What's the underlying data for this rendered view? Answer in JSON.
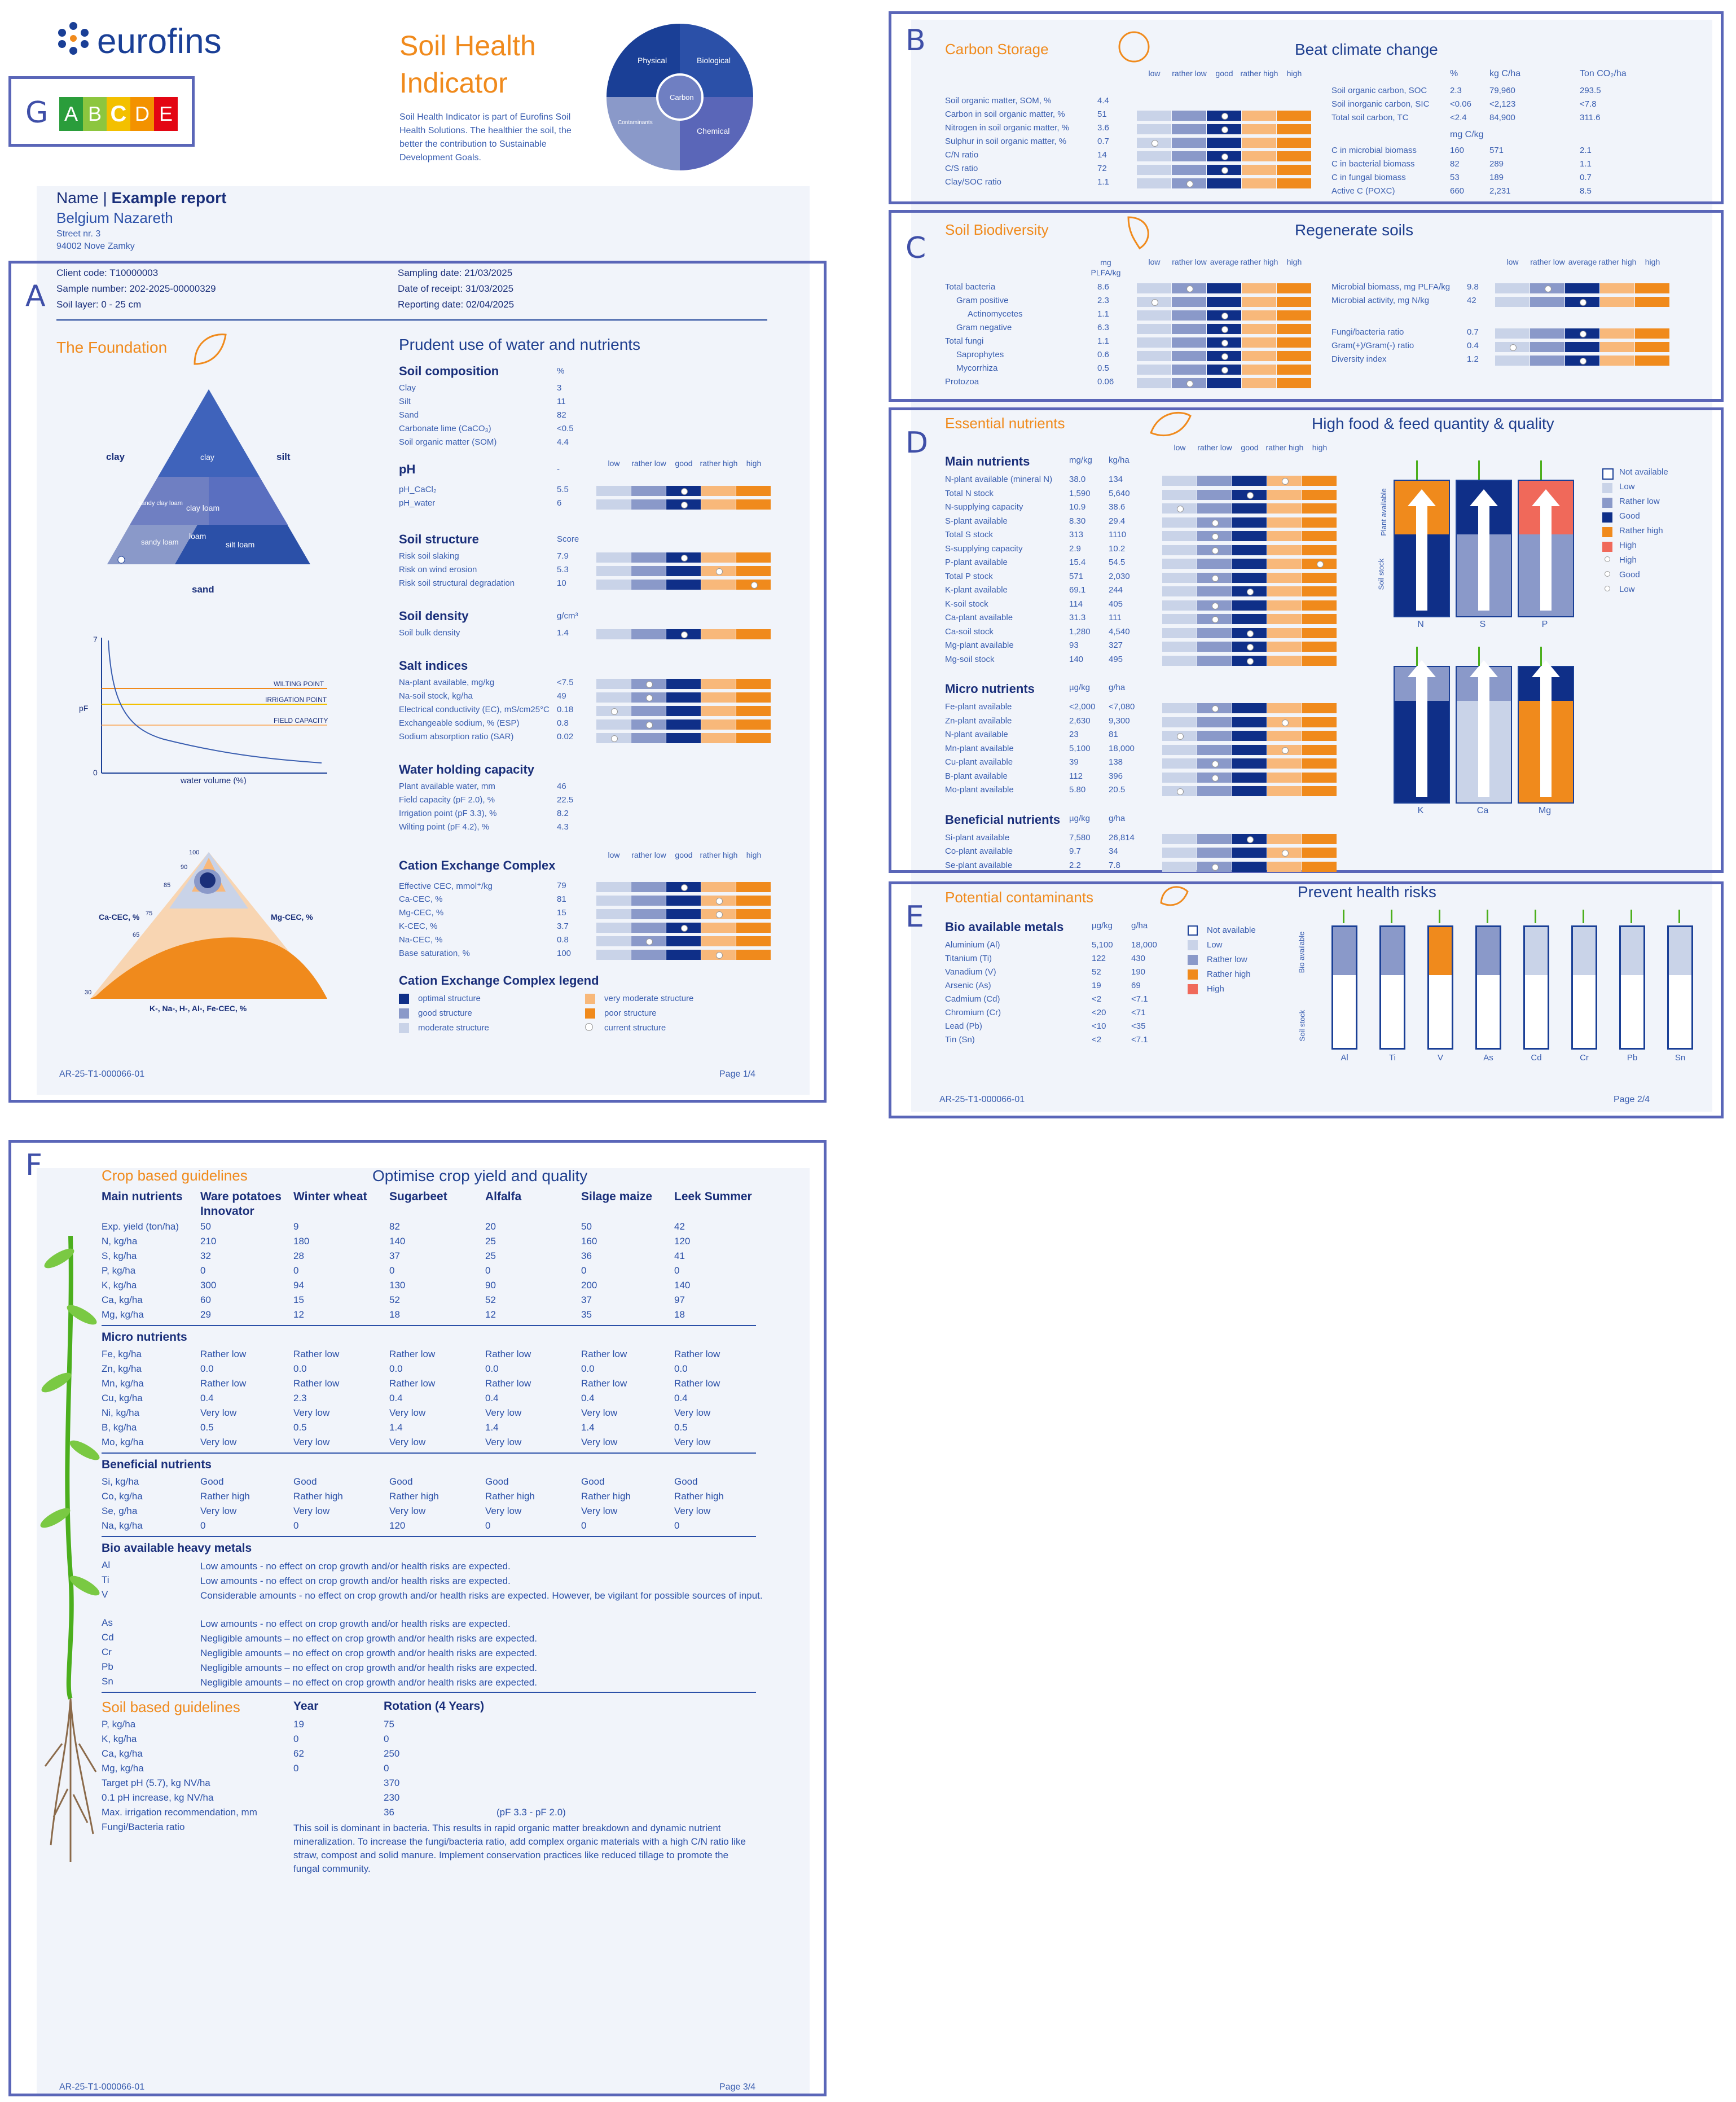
{
  "labels": {
    "A": "A",
    "B": "B",
    "C": "C",
    "D": "D",
    "E": "E",
    "F": "F",
    "G": "G"
  },
  "brand": "eurofins",
  "grade": [
    "A",
    "B",
    "C",
    "D",
    "E"
  ],
  "grade_colors": [
    "#2a9d3b",
    "#8cc63f",
    "#f3c000",
    "#f39200",
    "#e30613"
  ],
  "title": [
    "Soil Health",
    "Indicator"
  ],
  "intro": "Soil Health Indicator is part of Eurofins Soil Health Solutions. The healthier the soil, the better the contribution to Sustainable Development Goals.",
  "wheel": {
    "physical": "Physical",
    "biological": "Biological",
    "chemical": "Chemical",
    "carbon": "Carbon",
    "contaminants": "Contaminants"
  },
  "report": {
    "name_label": "Name",
    "name_value": "Example report",
    "location": "Belgium Nazareth",
    "street": "Street nr. 3",
    "city": "94002 Nove Zamky"
  },
  "meta": {
    "client_code": "Client code: T10000003",
    "sample_number": "Sample number: 202-2025-00000329",
    "soil_layer": "Soil layer: 0 - 25 cm",
    "sampling_date": "Sampling date: 21/03/2025",
    "receipt_date": "Date of receipt: 31/03/2025",
    "reporting_date": "Reporting date: 02/04/2025"
  },
  "scale5": [
    "low",
    "rather low",
    "good",
    "rather high",
    "high"
  ],
  "scale5b": [
    "low",
    "rather low",
    "average",
    "rather high",
    "high"
  ],
  "pageA": {
    "section": "The Foundation",
    "heading": "Prudent use of water and nutrients",
    "composition": {
      "title": "Soil composition",
      "unit": "%",
      "rows": [
        [
          "Clay",
          "3"
        ],
        [
          "Silt",
          "11"
        ],
        [
          "Sand",
          "82"
        ],
        [
          "Carbonate lime (CaCO₃)",
          "<0.5"
        ],
        [
          "Soil organic matter (SOM)",
          "4.4"
        ]
      ]
    },
    "ph": {
      "title": "pH",
      "unit": "-",
      "rows": [
        [
          "pH_CaCl₂",
          "5.5"
        ],
        [
          "pH_water",
          "6"
        ]
      ],
      "levels": [
        2,
        2
      ]
    },
    "structure": {
      "title": "Soil structure",
      "unit": "Score",
      "rows": [
        [
          "Risk soil slaking",
          "7.9"
        ],
        [
          "Risk on wind erosion",
          "5.3"
        ],
        [
          "Risk soil structural degradation",
          "10"
        ]
      ],
      "levels": [
        2,
        3,
        4
      ]
    },
    "density": {
      "title": "Soil density",
      "unit": "g/cm³",
      "rows": [
        [
          "Soil bulk density",
          "1.4"
        ]
      ],
      "levels": [
        2
      ]
    },
    "salt": {
      "title": "Salt indices",
      "rows": [
        [
          "Na-plant available, mg/kg",
          "<7.5"
        ],
        [
          "Na-soil stock, kg/ha",
          "49"
        ],
        [
          "Electrical conductivity (EC), mS/cm25°C",
          "0.18"
        ],
        [
          "Exchangeable sodium, % (ESP)",
          "0.8"
        ],
        [
          "Sodium absorption ratio (SAR)",
          "0.02"
        ]
      ],
      "levels": [
        1,
        1,
        0,
        1,
        0
      ]
    },
    "water": {
      "title": "Water holding capacity",
      "rows": [
        [
          "Plant available water, mm",
          "46"
        ],
        [
          "Field capacity (pF 2.0), %",
          "22.5"
        ],
        [
          "Irrigation point (pF 3.3), %",
          "8.2"
        ],
        [
          "Wilting point (pF 4.2), %",
          "4.3"
        ]
      ]
    },
    "cec": {
      "title": "Cation Exchange Complex",
      "rows": [
        [
          "Effective CEC, mmol⁺/kg",
          "79"
        ],
        [
          "Ca-CEC, %",
          "81"
        ],
        [
          "Mg-CEC, %",
          "15"
        ],
        [
          "K-CEC, %",
          "3.7"
        ],
        [
          "Na-CEC, %",
          "0.8"
        ],
        [
          "Base saturation, %",
          "100"
        ]
      ],
      "levels": [
        2,
        3,
        3,
        2,
        1,
        3
      ]
    },
    "cec_legend": {
      "title": "Cation Exchange Complex legend",
      "items": [
        "optimal structure",
        "good structure",
        "moderate structure",
        "very moderate structure",
        "poor structure",
        "current structure"
      ]
    },
    "texture": {
      "clay": "clay",
      "silt": "silt",
      "sand": "sand",
      "pct": "(%)",
      "zones": [
        "clay",
        "clay loam",
        "silt loam",
        "loam",
        "sandy loam",
        "sandy clay loam"
      ]
    },
    "pf": {
      "y": "pF",
      "x": "water volume (%)",
      "y_max": "7",
      "y_min": "0",
      "lines": [
        "WILTING POINT",
        "IRRIGATION POINT",
        "FIELD CAPACITY"
      ]
    },
    "cec_tri": {
      "ca": "Ca-CEC, %",
      "mg": "Mg-CEC, %",
      "k": "K-, Na-, H-, Al-, Fe-CEC, %",
      "ticks": [
        "100",
        "90",
        "85",
        "75",
        "65",
        "30"
      ]
    },
    "footer_left": "AR-25-T1-000066-01",
    "footer_right": "Page 1/4"
  },
  "pageB": {
    "section": "Carbon Storage",
    "heading": "Beat climate change",
    "rows": [
      [
        "Soil organic matter, SOM, %",
        "4.4"
      ],
      [
        "Carbon in soil organic matter, %",
        "51"
      ],
      [
        "Nitrogen in soil organic matter, %",
        "3.6"
      ],
      [
        "Sulphur in soil organic matter, %",
        "0.7"
      ],
      [
        "C/N ratio",
        "14"
      ],
      [
        "C/S ratio",
        "72"
      ],
      [
        "Clay/SOC ratio",
        "1.1"
      ]
    ],
    "levels": [
      null,
      2,
      2,
      0,
      2,
      2,
      1
    ],
    "right_head": [
      "%",
      "kg C/ha",
      "Ton CO₂/ha"
    ],
    "right_rows": [
      [
        "Soil organic carbon, SOC",
        "2.3",
        "79,960",
        "293.5"
      ],
      [
        "Soil inorganic carbon, SIC",
        "<0.06",
        "<2,123",
        "<7.8"
      ],
      [
        "Total soil carbon, TC",
        "<2.4",
        "84,900",
        "311.6"
      ]
    ],
    "right_head2": "mg C/kg",
    "right_rows2": [
      [
        "C in microbial biomass",
        "160",
        "571",
        "2.1"
      ],
      [
        "C in bacterial biomass",
        "82",
        "289",
        "1.1"
      ],
      [
        "C in fungal biomass",
        "53",
        "189",
        "0.7"
      ],
      [
        "Active C (POXC)",
        "660",
        "2,231",
        "8.5"
      ]
    ]
  },
  "pageC": {
    "section": "Soil Biodiversity",
    "heading": "Regenerate soils",
    "unit": "mg PLFA/kg",
    "rows": [
      [
        "Total bacteria",
        "8.6"
      ],
      [
        "Gram positive",
        "2.3"
      ],
      [
        "Actinomycetes",
        "1.1"
      ],
      [
        "Gram negative",
        "6.3"
      ],
      [
        "Total fungi",
        "1.1"
      ],
      [
        "Saprophytes",
        "0.6"
      ],
      [
        "Mycorrhiza",
        "0.5"
      ],
      [
        "Protozoa",
        "0.06"
      ]
    ],
    "levels": [
      1,
      0,
      2,
      2,
      2,
      2,
      2,
      1
    ],
    "right_rows": [
      [
        "Microbial biomass, mg PLFA/kg",
        "9.8"
      ],
      [
        "Microbial activity, mg N/kg",
        "42"
      ],
      [
        "Fungi/bacteria ratio",
        "0.7"
      ],
      [
        "Gram(+)/Gram(-) ratio",
        "0.4"
      ],
      [
        "Diversity index",
        "1.2"
      ]
    ],
    "right_levels": [
      1,
      2,
      2,
      0,
      2
    ]
  },
  "pageD": {
    "section": "Essential nutrients",
    "heading": "High food & feed quantity & quality",
    "main": {
      "title": "Main nutrients",
      "units": [
        "mg/kg",
        "kg/ha"
      ],
      "rows": [
        [
          "N-plant available (mineral N)",
          "38.0",
          "134"
        ],
        [
          "Total N stock",
          "1,590",
          "5,640"
        ],
        [
          "N-supplying capacity",
          "10.9",
          "38.6"
        ],
        [
          "S-plant available",
          "8.30",
          "29.4"
        ],
        [
          "Total S stock",
          "313",
          "1110"
        ],
        [
          "S-supplying capacity",
          "2.9",
          "10.2"
        ],
        [
          "P-plant available",
          "15.4",
          "54.5"
        ],
        [
          "Total P stock",
          "571",
          "2,030"
        ],
        [
          "K-plant available",
          "69.1",
          "244"
        ],
        [
          "K-soil stock",
          "114",
          "405"
        ],
        [
          "Ca-plant available",
          "31.3",
          "111"
        ],
        [
          "Ca-soil stock",
          "1,280",
          "4,540"
        ],
        [
          "Mg-plant available",
          "93",
          "327"
        ],
        [
          "Mg-soil stock",
          "140",
          "495"
        ]
      ],
      "levels": [
        3,
        2,
        0,
        1,
        1,
        1,
        4,
        1,
        2,
        1,
        1,
        2,
        2,
        2
      ]
    },
    "micro": {
      "title": "Micro nutrients",
      "units": [
        "µg/kg",
        "g/ha"
      ],
      "rows": [
        [
          "Fe-plant available",
          "<2,000",
          "<7,080"
        ],
        [
          "Zn-plant available",
          "2,630",
          "9,300"
        ],
        [
          "N-plant available",
          "23",
          "81"
        ],
        [
          "Mn-plant available",
          "5,100",
          "18,000"
        ],
        [
          "Cu-plant available",
          "39",
          "138"
        ],
        [
          "B-plant available",
          "112",
          "396"
        ],
        [
          "Mo-plant available",
          "5.80",
          "20.5"
        ]
      ],
      "levels": [
        1,
        3,
        0,
        3,
        1,
        1,
        0
      ]
    },
    "beneficial": {
      "title": "Beneficial nutrients",
      "units": [
        "µg/kg",
        "g/ha"
      ],
      "rows": [
        [
          "Si-plant available",
          "7,580",
          "26,814"
        ],
        [
          "Co-plant available",
          "9.7",
          "34"
        ],
        [
          "Se-plant available",
          "2.2",
          "7.8"
        ]
      ],
      "levels": [
        2,
        3,
        1
      ]
    },
    "gauges": [
      {
        "label": "N",
        "top": "#f08a1c",
        "bottom": "#0f2f88"
      },
      {
        "label": "S",
        "top": "#0f2f88",
        "bottom": "#8a99c9"
      },
      {
        "label": "P",
        "top": "#f0695a",
        "bottom": "#8a99c9"
      },
      {
        "label": "K",
        "top": "#8a99c9",
        "bottom": "#0f2f88"
      },
      {
        "label": "Ca",
        "top": "#8a99c9",
        "bottom": "#c9d3e8"
      },
      {
        "label": "Mg",
        "top": "#0f2f88",
        "bottom": "#f08a1c"
      }
    ],
    "gauge_axis": [
      "Plant available",
      "Soil stock"
    ],
    "legend": [
      "Not available",
      "Low",
      "Rather low",
      "Good",
      "Rather high",
      "High",
      "High",
      "Good",
      "Low"
    ]
  },
  "pageE": {
    "section": "Potential contaminants",
    "heading": "Prevent health risks",
    "title": "Bio available metals",
    "units": [
      "µg/kg",
      "g/ha"
    ],
    "rows": [
      [
        "Aluminium (Al)",
        "5,100",
        "18,000"
      ],
      [
        "Titanium (Ti)",
        "122",
        "430"
      ],
      [
        "Vanadium (V)",
        "52",
        "190"
      ],
      [
        "Arsenic (As)",
        "19",
        "69"
      ],
      [
        "Cadmium (Cd)",
        "<2",
        "<7.1"
      ],
      [
        "Chromium (Cr)",
        "<20",
        "<71"
      ],
      [
        "Lead (Pb)",
        "<10",
        "<35"
      ],
      [
        "Tin (Sn)",
        "<2",
        "<7.1"
      ]
    ],
    "legend": [
      "Not available",
      "Low",
      "Rather low",
      "Rather high",
      "High"
    ],
    "tubes": [
      {
        "label": "Al",
        "color": "#8a99c9"
      },
      {
        "label": "Ti",
        "color": "#8a99c9"
      },
      {
        "label": "V",
        "color": "#f08a1c"
      },
      {
        "label": "As",
        "color": "#8a99c9"
      },
      {
        "label": "Cd",
        "color": "#c9d3e8"
      },
      {
        "label": "Cr",
        "color": "#c9d3e8"
      },
      {
        "label": "Pb",
        "color": "#c9d3e8"
      },
      {
        "label": "Sn",
        "color": "#c9d3e8"
      }
    ],
    "axis": [
      "Bio available",
      "Soil stock"
    ],
    "footer_left": "AR-25-T1-000066-01",
    "footer_right": "Page 2/4"
  },
  "pageF": {
    "section": "Crop based guidelines",
    "heading": "Optimise crop yield and quality",
    "cols": [
      "Main nutrients",
      "Ware potatoes Innovator",
      "Winter wheat",
      "Sugarbeet",
      "Alfalfa",
      "Silage maize",
      "Leek Summer"
    ],
    "main": [
      [
        "Exp. yield (ton/ha)",
        "50",
        "9",
        "82",
        "20",
        "50",
        "42"
      ],
      [
        "N, kg/ha",
        "210",
        "180",
        "140",
        "25",
        "160",
        "120"
      ],
      [
        "S, kg/ha",
        "32",
        "28",
        "37",
        "25",
        "36",
        "41"
      ],
      [
        "P, kg/ha",
        "0",
        "0",
        "0",
        "0",
        "0",
        "0"
      ],
      [
        "K, kg/ha",
        "300",
        "94",
        "130",
        "90",
        "200",
        "140"
      ],
      [
        "Ca, kg/ha",
        "60",
        "15",
        "52",
        "52",
        "37",
        "97"
      ],
      [
        "Mg, kg/ha",
        "29",
        "12",
        "18",
        "12",
        "35",
        "18"
      ]
    ],
    "micro_title": "Micro nutrients",
    "micro": [
      [
        "Fe, kg/ha",
        "Rather low",
        "Rather low",
        "Rather low",
        "Rather low",
        "Rather low",
        "Rather low"
      ],
      [
        "Zn, kg/ha",
        "0.0",
        "0.0",
        "0.0",
        "0.0",
        "0.0",
        "0.0"
      ],
      [
        "Mn, kg/ha",
        "Rather low",
        "Rather low",
        "Rather low",
        "Rather low",
        "Rather low",
        "Rather low"
      ],
      [
        "Cu, kg/ha",
        "0.4",
        "2.3",
        "0.4",
        "0.4",
        "0.4",
        "0.4"
      ],
      [
        "Ni, kg/ha",
        "Very low",
        "Very low",
        "Very low",
        "Very low",
        "Very low",
        "Very low"
      ],
      [
        "B, kg/ha",
        "0.5",
        "0.5",
        "1.4",
        "1.4",
        "1.4",
        "0.5"
      ],
      [
        "Mo, kg/ha",
        "Very low",
        "Very low",
        "Very low",
        "Very low",
        "Very low",
        "Very low"
      ]
    ],
    "ben_title": "Beneficial nutrients",
    "ben": [
      [
        "Si, kg/ha",
        "Good",
        "Good",
        "Good",
        "Good",
        "Good",
        "Good"
      ],
      [
        "Co, kg/ha",
        "Rather high",
        "Rather high",
        "Rather high",
        "Rather high",
        "Rather high",
        "Rather high"
      ],
      [
        "Se, g/ha",
        "Very low",
        "Very low",
        "Very low",
        "Very low",
        "Very low",
        "Very low"
      ],
      [
        "Na, kg/ha",
        "0",
        "0",
        "120",
        "0",
        "0",
        "0"
      ]
    ],
    "metals_title": "Bio available heavy metals",
    "metals": [
      [
        "Al",
        "Low amounts - no effect on crop growth and/or health risks are expected."
      ],
      [
        "Ti",
        "Low amounts - no effect on crop growth and/or health risks are expected."
      ],
      [
        "V",
        "Considerable amounts - no effect on crop growth and/or health risks are expected. However, be vigilant for possible sources of input."
      ],
      [
        "As",
        "Low amounts - no effect on crop growth and/or health risks are expected."
      ],
      [
        "Cd",
        "Negligible amounts – no effect on crop growth and/or health risks are expected."
      ],
      [
        "Cr",
        "Negligible amounts – no effect on crop growth and/or health risks are expected."
      ],
      [
        "Pb",
        "Negligible amounts – no effect on crop growth and/or health risks are expected."
      ],
      [
        "Sn",
        "Negligible amounts – no effect on crop growth and/or health risks are expected."
      ]
    ],
    "soil_title": "Soil based guidelines",
    "soil_cols": [
      "Year",
      "Rotation (4 Years)"
    ],
    "soil": [
      [
        "P, kg/ha",
        "19",
        "75"
      ],
      [
        "K, kg/ha",
        "0",
        "0"
      ],
      [
        "Ca, kg/ha",
        "62",
        "250"
      ],
      [
        "Mg, kg/ha",
        "0",
        "0"
      ],
      [
        "Target pH (5.7), kg NV/ha",
        "",
        "370"
      ],
      [
        "0.1 pH increase, kg NV/ha",
        "",
        "230"
      ],
      [
        "Max. irrigation recommendation, mm",
        "",
        "36"
      ]
    ],
    "irrigation_note": "(pF 3.3 - pF 2.0)",
    "fb_label": "Fungi/Bacteria ratio",
    "fb_text": "This soil is dominant in bacteria. This results in rapid organic matter breakdown and dynamic nutrient mineralization. To increase the fungi/bacteria ratio, add complex organic materials with a high C/N ratio like straw, compost and solid manure. Implement conservation practices like reduced tillage to promote the fungal community.",
    "footer_left": "AR-25-T1-000066-01",
    "footer_right": "Page 3/4"
  }
}
